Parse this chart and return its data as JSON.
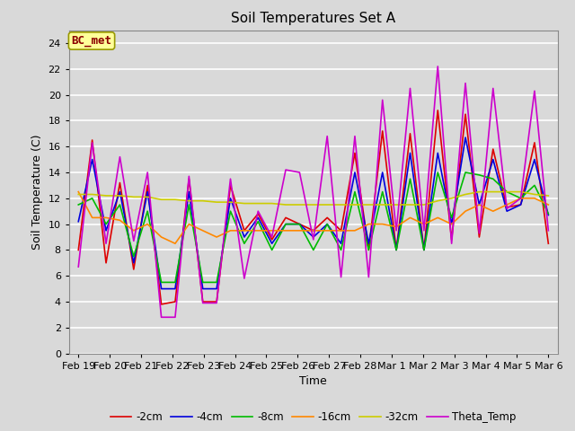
{
  "title": "Soil Temperatures Set A",
  "xlabel": "Time",
  "ylabel": "Soil Temperature (C)",
  "ylim": [
    0,
    25
  ],
  "yticks": [
    0,
    2,
    4,
    6,
    8,
    10,
    12,
    14,
    16,
    18,
    20,
    22,
    24
  ],
  "background_color": "#d9d9d9",
  "annotation_text": "BC_met",
  "annotation_color": "#8b0000",
  "annotation_bg": "#ffff99",
  "x_labels": [
    "Feb 19",
    "Feb 20",
    "Feb 21",
    "Feb 22",
    "Feb 23",
    "Feb 24",
    "Feb 25",
    "Feb 26",
    "Feb 27",
    "Feb 28",
    "Mar 1",
    "Mar 2",
    "Mar 3",
    "Mar 4",
    "Mar 5",
    "Mar 6"
  ],
  "series_order": [
    "-2cm",
    "-4cm",
    "-8cm",
    "-16cm",
    "-32cm",
    "Theta_Temp"
  ],
  "series": {
    "-2cm": {
      "color": "#dd0000",
      "lw": 1.2
    },
    "-4cm": {
      "color": "#0000dd",
      "lw": 1.2
    },
    "-8cm": {
      "color": "#00bb00",
      "lw": 1.2
    },
    "-16cm": {
      "color": "#ff8800",
      "lw": 1.2
    },
    "-32cm": {
      "color": "#cccc00",
      "lw": 1.2
    },
    "Theta_Temp": {
      "color": "#cc00cc",
      "lw": 1.2
    }
  },
  "data": {
    "-2cm": [
      8.0,
      16.5,
      7.0,
      13.2,
      6.5,
      13.0,
      3.8,
      4.0,
      13.5,
      4.0,
      4.0,
      13.0,
      9.5,
      10.8,
      8.8,
      10.5,
      10.0,
      9.5,
      10.5,
      9.5,
      15.5,
      8.0,
      17.2,
      8.0,
      17.0,
      8.0,
      18.8,
      8.8,
      18.5,
      9.0,
      15.8,
      11.3,
      11.5,
      16.3,
      8.5
    ],
    "-4cm": [
      10.2,
      15.0,
      9.5,
      12.5,
      7.0,
      12.5,
      5.0,
      5.0,
      12.5,
      5.0,
      5.0,
      12.0,
      9.0,
      10.5,
      8.5,
      10.0,
      10.0,
      9.0,
      10.0,
      8.5,
      14.0,
      8.5,
      14.0,
      8.0,
      15.5,
      8.0,
      15.5,
      10.0,
      16.7,
      11.5,
      15.0,
      11.0,
      11.5,
      15.0,
      10.7
    ],
    "-8cm": [
      11.5,
      12.0,
      10.0,
      11.5,
      7.5,
      11.0,
      5.5,
      5.5,
      11.5,
      5.5,
      5.5,
      11.0,
      8.5,
      10.2,
      8.0,
      10.0,
      10.0,
      8.0,
      10.0,
      8.0,
      12.5,
      8.0,
      12.5,
      8.0,
      13.5,
      8.0,
      14.0,
      10.5,
      14.0,
      13.8,
      13.5,
      12.5,
      12.0,
      13.0,
      10.8
    ],
    "-16cm": [
      12.5,
      10.5,
      10.5,
      10.3,
      9.5,
      10.0,
      9.0,
      8.5,
      10.0,
      9.5,
      9.0,
      9.5,
      9.5,
      9.5,
      9.5,
      9.5,
      9.5,
      9.5,
      9.5,
      9.5,
      9.5,
      10.0,
      10.0,
      9.8,
      10.5,
      10.0,
      10.5,
      10.0,
      11.0,
      11.5,
      11.0,
      11.5,
      12.0,
      12.0,
      11.5
    ],
    "-32cm": [
      12.3,
      12.3,
      12.2,
      12.2,
      12.1,
      12.1,
      11.9,
      11.9,
      11.8,
      11.8,
      11.7,
      11.7,
      11.6,
      11.6,
      11.6,
      11.5,
      11.5,
      11.5,
      11.5,
      11.5,
      11.5,
      11.5,
      11.5,
      11.5,
      11.5,
      11.5,
      11.8,
      12.0,
      12.3,
      12.5,
      12.5,
      12.5,
      12.5,
      12.3,
      12.2
    ],
    "Theta_Temp": [
      6.7,
      16.3,
      8.5,
      15.2,
      8.7,
      14.0,
      2.8,
      2.8,
      13.7,
      3.9,
      3.9,
      13.5,
      5.8,
      11.0,
      9.0,
      14.2,
      14.0,
      8.8,
      16.8,
      5.9,
      16.8,
      5.9,
      19.6,
      9.5,
      20.5,
      9.5,
      22.2,
      8.5,
      20.9,
      9.3,
      20.5,
      11.2,
      12.0,
      20.3,
      9.5
    ]
  }
}
